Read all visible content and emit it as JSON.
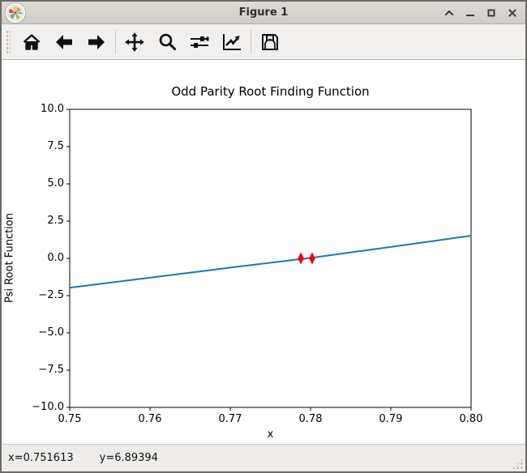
{
  "window": {
    "title": "Figure 1"
  },
  "titlebar_controls": [
    "shade",
    "minimize",
    "maximize",
    "close"
  ],
  "app_icon": "matplotlib-logo",
  "toolbar": {
    "buttons": [
      "home",
      "back",
      "forward",
      "pan",
      "zoom-to-rect",
      "configure-subplots",
      "edit-parameters",
      "save"
    ]
  },
  "statusbar": {
    "x_readout": "x=0.751613",
    "y_readout": "y=6.89394"
  },
  "chart_data": {
    "type": "line",
    "title": "Odd Parity Root Finding Function",
    "xlabel": "x",
    "ylabel": "Psi Root Function",
    "xlim": [
      0.75,
      0.8
    ],
    "ylim": [
      -10.0,
      10.0
    ],
    "xticks": [
      0.75,
      0.76,
      0.77,
      0.78,
      0.79,
      0.8
    ],
    "xtick_labels": [
      "0.75",
      "0.76",
      "0.77",
      "0.78",
      "0.79",
      "0.80"
    ],
    "yticks": [
      10.0,
      7.5,
      5.0,
      2.5,
      0.0,
      -2.5,
      -5.0,
      -7.5,
      -10.0
    ],
    "ytick_labels": [
      "10.0",
      "7.5",
      "5.0",
      "2.5",
      "0.0",
      "−2.5",
      "−5.0",
      "−7.5",
      "−10.0"
    ],
    "grid": false,
    "legend": null,
    "series": [
      {
        "name": "psi-root-function-line",
        "type": "line",
        "color": "#1f77b4",
        "linewidth": 2,
        "x": [
          0.75,
          0.755,
          0.76,
          0.765,
          0.77,
          0.775,
          0.78,
          0.785,
          0.79,
          0.795,
          0.8
        ],
        "y": [
          -1.97,
          -1.63,
          -1.3,
          -0.96,
          -0.62,
          -0.29,
          0.03,
          0.4,
          0.77,
          1.14,
          1.52
        ]
      },
      {
        "name": "root-markers",
        "type": "scatter",
        "marker": "thin-diamond",
        "color": "#f40000",
        "x": [
          0.7788,
          0.7802
        ],
        "y": [
          0.0,
          0.0
        ]
      }
    ]
  }
}
